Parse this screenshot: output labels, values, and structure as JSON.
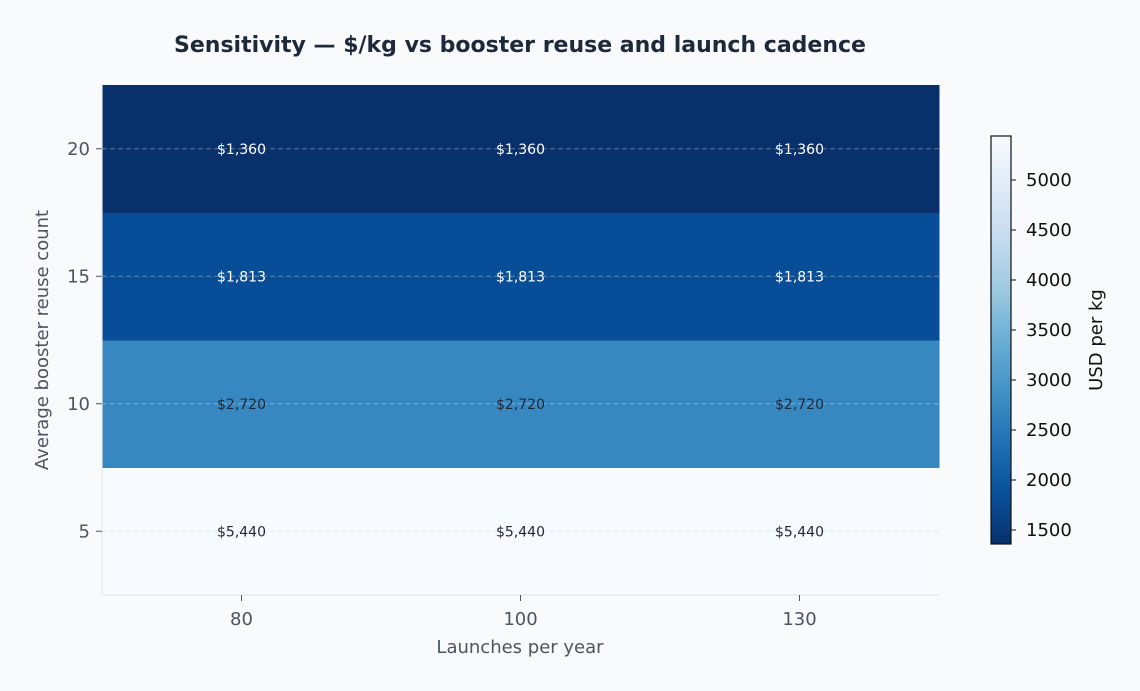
{
  "chart_data": {
    "type": "heatmap",
    "title": "Sensitivity — $/kg vs booster reuse and launch cadence",
    "xlabel": "Launches per year",
    "ylabel": "Average booster reuse count",
    "x_categories": [
      "80",
      "100",
      "130"
    ],
    "y_categories": [
      "5",
      "10",
      "15",
      "20"
    ],
    "values": [
      [
        5440,
        5440,
        5440
      ],
      [
        2720,
        2720,
        2720
      ],
      [
        1813,
        1813,
        1813
      ],
      [
        1360,
        1360,
        1360
      ]
    ],
    "cell_labels": [
      [
        "$5,440",
        "$5,440",
        "$5,440"
      ],
      [
        "$2,720",
        "$2,720",
        "$2,720"
      ],
      [
        "$1,813",
        "$1,813",
        "$1,813"
      ],
      [
        "$1,360",
        "$1,360",
        "$1,360"
      ]
    ],
    "colormap": "Blues_r",
    "grid": "horizontal dashed",
    "colorbar": {
      "label": "USD per kg",
      "range": [
        1360,
        5440
      ],
      "ticks": [
        1500,
        2000,
        2500,
        3000,
        3500,
        4000,
        4500,
        5000
      ],
      "tick_labels": [
        "1500",
        "2000",
        "2500",
        "3000",
        "3500",
        "4000",
        "4500",
        "5000"
      ]
    }
  },
  "colors": {
    "background": "#f8fafc",
    "title": "#1e293b",
    "axis_text": "#4b5563",
    "colormap_stops": [
      "#08306b",
      "#08519c",
      "#2171b5",
      "#4292c6",
      "#6baed6",
      "#9ecae1",
      "#c6dbef",
      "#deebf7",
      "#f7fbff"
    ]
  }
}
